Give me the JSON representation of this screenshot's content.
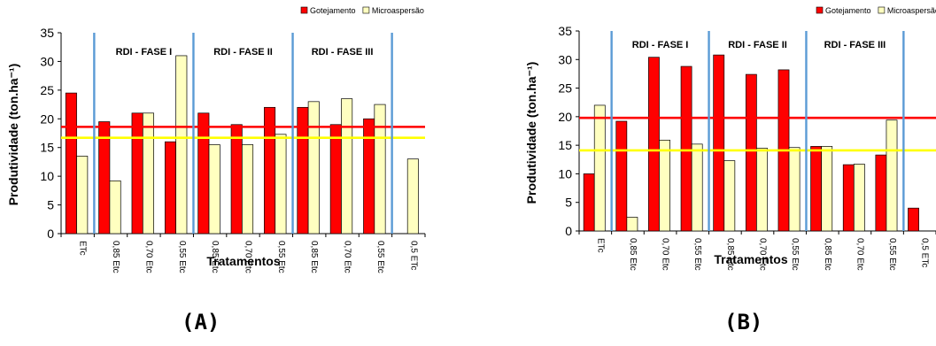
{
  "panels": [
    {
      "panel_label": "(A)",
      "legend": [
        "Gotejamento",
        "Microaspersão"
      ],
      "chart_data": {
        "type": "bar",
        "categories": [
          "ETc",
          "0,85 Etc",
          "0,70 Etc",
          "0,55 Etc",
          "0,85 Etc",
          "0,70 Etc",
          "0,55 Etc",
          "0,85 Etc",
          "0,70 Etc",
          "0,55 Etc",
          "0,5 ETc"
        ],
        "series": [
          {
            "name": "Gotejamento",
            "color": "#ff0000",
            "values": [
              24.5,
              19.5,
              21,
              16,
              21,
              19,
              22,
              22,
              19,
              20,
              null
            ]
          },
          {
            "name": "Microaspersão",
            "color": "#ffffc0",
            "values": [
              13.5,
              9.2,
              21,
              31,
              15.5,
              15.5,
              17.3,
              23,
              23.5,
              22.5,
              13
            ]
          }
        ],
        "xlabel": "Tratamentos",
        "ylabel": "Produtividade (ton.ha⁻¹)",
        "ylim": [
          0,
          35
        ],
        "yticks": [
          0,
          5,
          10,
          15,
          20,
          25,
          30,
          35
        ],
        "reference_lines": [
          {
            "value": 18.6,
            "color": "#ff0000"
          },
          {
            "value": 16.7,
            "color": "#ffff00"
          }
        ],
        "phases": [
          {
            "label": "RDI - FASE I",
            "from": 1,
            "to": 3
          },
          {
            "label": "RDI - FASE II",
            "from": 4,
            "to": 6
          },
          {
            "label": "RDI - FASE III",
            "from": 7,
            "to": 9
          }
        ],
        "legend_position": "top-right"
      }
    },
    {
      "panel_label": "(B)",
      "legend": [
        "Gotejamento",
        "Microaspersão"
      ],
      "chart_data": {
        "type": "bar",
        "categories": [
          "ETc",
          "0,85 Etc",
          "0,70 Etc",
          "0,55 Etc",
          "0,85 Etc",
          "0,70 Etc",
          "0,55 Etc",
          "0,85 Etc",
          "0,70 Etc",
          "0,55 Etc",
          "0,5 ETc"
        ],
        "series": [
          {
            "name": "Gotejamento",
            "color": "#ff0000",
            "values": [
              10,
              19.2,
              30.4,
              28.8,
              30.8,
              27.4,
              28.2,
              14.8,
              11.6,
              13.3,
              4
            ]
          },
          {
            "name": "Microaspersão",
            "color": "#ffffc0",
            "values": [
              22,
              2.4,
              15.9,
              15.2,
              12.3,
              14.5,
              14.6,
              14.8,
              11.7,
              19.4,
              null
            ]
          }
        ],
        "xlabel": "Tratamentos",
        "ylabel": "Produtividade (ton.ha⁻¹)",
        "ylim": [
          0,
          35
        ],
        "yticks": [
          0,
          5,
          10,
          15,
          20,
          25,
          30,
          35
        ],
        "reference_lines": [
          {
            "value": 19.8,
            "color": "#ff0000"
          },
          {
            "value": 14.1,
            "color": "#ffff00"
          }
        ],
        "phases": [
          {
            "label": "RDI - FASE I",
            "from": 1,
            "to": 3
          },
          {
            "label": "RDI - FASE II",
            "from": 4,
            "to": 6
          },
          {
            "label": "RDI - FASE III",
            "from": 7,
            "to": 9
          }
        ],
        "legend_position": "top-right"
      }
    }
  ]
}
